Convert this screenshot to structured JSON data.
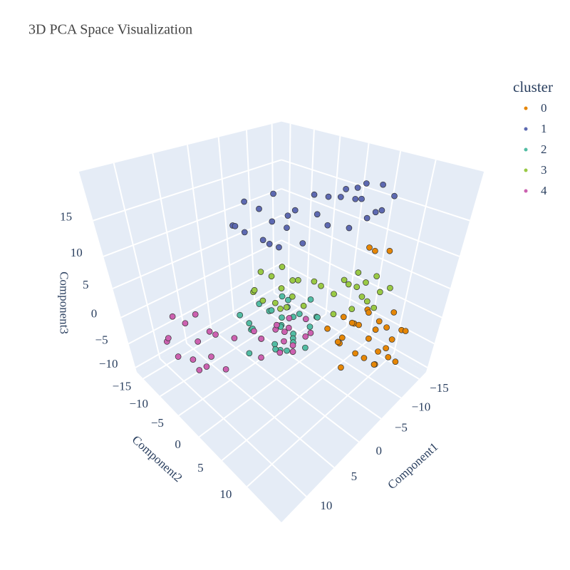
{
  "chart_data": {
    "type": "scatter3d",
    "title": "3D PCA Space Visualization",
    "xlabel": "Component1",
    "ylabel": "Component2",
    "zlabel": "Component3",
    "legend_title": "cluster",
    "xlim": [
      -17,
      14
    ],
    "ylim": [
      -17,
      16
    ],
    "zlim": [
      -11,
      21
    ],
    "xticks": [
      {
        "value": -15,
        "label": "−15"
      },
      {
        "value": -10,
        "label": "−10"
      },
      {
        "value": -5,
        "label": "−5"
      },
      0,
      5,
      10
    ],
    "yticks": [
      {
        "value": -15,
        "label": "−15"
      },
      {
        "value": -10,
        "label": "−10"
      },
      {
        "value": -5,
        "label": "−5"
      },
      0,
      5,
      10
    ],
    "zticks": [
      {
        "value": -10,
        "label": "−10"
      },
      {
        "value": -5,
        "label": "−5"
      },
      0,
      5,
      10,
      15
    ],
    "grid": true,
    "series": [
      {
        "name": "0",
        "color": "#e58606",
        "x": [
          -9.3,
          -6.9,
          -11.7,
          -5.7,
          -12.9,
          -8.1,
          -10.5,
          -4.5,
          -14.1,
          -6.9,
          -11.7,
          -8.1,
          -9.3,
          -9.3,
          -5.7,
          -12.9,
          -5.7,
          -14.1,
          -3.3,
          -15.3,
          -8.1,
          -10.5,
          -6.9,
          -11.7,
          -4.5,
          -14.1,
          -9.3,
          -7.5,
          -6.8,
          -9.0
        ],
        "y": [
          9.4,
          10.6,
          10.6,
          7.0,
          8.2,
          13.0,
          5.8,
          10.6,
          11.8,
          5.8,
          7.0,
          11.8,
          4.6,
          14.2,
          13.0,
          13.0,
          4.6,
          5.8,
          9.4,
          9.4,
          8.2,
          10.6,
          14.2,
          4.6,
          8.2,
          10.6,
          10.6,
          9.4,
          9.0,
          10.5
        ],
        "z": [
          -3.0,
          -4.3,
          -1.7,
          -3.0,
          -4.3,
          -1.7,
          -3.0,
          -1.7,
          -3.0,
          -4.3,
          -0.4,
          -5.6,
          -1.7,
          -4.3,
          -3.0,
          -1.7,
          -1.7,
          -3.0,
          -4.3,
          -1.7,
          -0.4,
          -5.6,
          -1.7,
          -4.3,
          -0.4,
          -5.6,
          0.9,
          12.2,
          12.8,
          12.0
        ]
      },
      {
        "name": "1",
        "color": "#5d69b1",
        "x": [
          -0.7,
          1.9,
          -3.3,
          3.2,
          -4.6,
          0.6,
          -2.0,
          4.5,
          -5.9,
          1.9,
          -3.3,
          0.6,
          -0.7,
          -0.7,
          3.2,
          -14.1,
          -7.5,
          -15.2,
          -5.3,
          -16.3,
          -9.7,
          -11.9,
          -8.6,
          -13.0,
          -6.4,
          -15.2,
          -10.8,
          -9.7,
          -11.9,
          -8.6
        ],
        "y": [
          -1.3,
          0.0,
          0.0,
          -3.9,
          -2.6,
          2.6,
          -5.2,
          0.0,
          1.3,
          -5.2,
          -3.9,
          1.3,
          -6.5,
          3.9,
          2.6,
          6.9,
          -0.8,
          0.3,
          3.6,
          3.6,
          2.5,
          4.7,
          8.0,
          -0.8,
          2.5,
          4.7,
          4.7,
          3.6,
          2.5,
          5.8
        ],
        "z": [
          14.9,
          13.9,
          15.9,
          14.9,
          13.9,
          15.9,
          14.9,
          15.9,
          14.9,
          13.9,
          16.9,
          12.9,
          15.9,
          13.9,
          14.9,
          16.4,
          16.4,
          15.4,
          14.4,
          16.4,
          17.4,
          13.4,
          16.4,
          14.4,
          17.4,
          13.4,
          18.4,
          12.4,
          15.4,
          17.4
        ]
      },
      {
        "name": "2",
        "color": "#52bca3",
        "x": [
          -1.5,
          0.9,
          -3.9,
          2.1,
          -5.1,
          -0.3,
          -2.7,
          3.3,
          -6.3,
          0.9,
          -3.9,
          -0.3,
          -1.5,
          -1.5,
          2.1,
          -5.1,
          2.1,
          -6.3,
          4.5,
          -7.5,
          -0.3,
          -2.7,
          0.9,
          -3.9,
          3.3,
          -6.3,
          -1.5,
          -0.3,
          -2.7,
          0.9
        ],
        "y": [
          -0.5,
          0.7,
          0.7,
          -2.9,
          -1.7,
          3.1,
          -4.1,
          0.7,
          1.9,
          -4.1,
          -2.9,
          1.9,
          -5.3,
          4.3,
          3.1,
          3.1,
          -5.3,
          -4.1,
          -0.5,
          -0.5,
          -1.7,
          0.7,
          4.3,
          -5.3,
          -1.7,
          0.7,
          0.7,
          -0.5,
          -1.7,
          1.9
        ],
        "z": [
          -1.4,
          -2.7,
          -0.1,
          -1.4,
          -2.7,
          -0.1,
          -1.4,
          -0.1,
          -1.4,
          -2.7,
          1.2,
          -4.0,
          -0.1,
          -2.7,
          -1.4,
          -0.1,
          -0.1,
          -1.4,
          -2.7,
          -0.1,
          1.2,
          -4.0,
          -0.1,
          -2.7,
          1.2,
          -4.0,
          2.5,
          -5.3,
          -1.4,
          1.2
        ]
      },
      {
        "name": "3",
        "color": "#99c945",
        "x": [
          -3.1,
          -0.9,
          -5.3,
          0.2,
          -6.4,
          -2.0,
          -4.2,
          1.3,
          -7.5,
          -0.9,
          -5.3,
          -2.0,
          -3.1,
          -3.1,
          0.2,
          -15.7,
          -9.1,
          -16.8,
          -6.9,
          -16.9,
          -11.3,
          -13.5,
          -10.2,
          -14.6,
          -8.0,
          -16.8,
          -12.4,
          -11.3,
          -13.5,
          -10.2
        ],
        "y": [
          -2.2,
          -1.1,
          -1.1,
          -4.4,
          -3.3,
          1.1,
          -5.5,
          -1.1,
          0.0,
          -5.5,
          -4.4,
          0.0,
          -6.6,
          2.2,
          1.1,
          7.8,
          0.0,
          1.1,
          4.5,
          4.5,
          3.4,
          5.6,
          8.9,
          0.1,
          3.4,
          5.6,
          5.6,
          4.5,
          3.4,
          6.7
        ],
        "z": [
          3.4,
          2.6,
          4.2,
          3.4,
          2.6,
          4.2,
          3.4,
          4.2,
          3.4,
          2.6,
          5.0,
          1.8,
          4.2,
          2.6,
          3.4,
          1.8,
          1.8,
          1.0,
          0.2,
          1.8,
          2.6,
          -0.6,
          1.8,
          0.2,
          2.6,
          -0.6,
          3.4,
          -1.4,
          1.0,
          2.6
        ]
      },
      {
        "name": "4",
        "color": "#cc61b0",
        "x": [
          7.8,
          9.8,
          5.8,
          10.8,
          4.8,
          8.8,
          6.8,
          11.8,
          3.8,
          9.8,
          5.8,
          8.8,
          7.8,
          7.8,
          10.8,
          -4.5,
          0.9,
          -5.4,
          2.7,
          -6.3,
          -0.9,
          -2.7,
          0.0,
          -3.6,
          1.8,
          -5.4,
          -1.8,
          -0.9,
          -2.7,
          0.0
        ],
        "y": [
          -7.9,
          -6.3,
          -6.3,
          -11.1,
          -9.5,
          -3.1,
          -12.7,
          -6.3,
          -4.7,
          -12.7,
          -11.1,
          -4.7,
          -14.3,
          -1.5,
          -3.1,
          2.5,
          -3.8,
          -2.9,
          -0.2,
          -0.2,
          -1.1,
          0.7,
          3.4,
          -3.8,
          -1.1,
          0.7,
          0.7,
          -0.2,
          -1.1,
          1.6
        ],
        "z": [
          -3.0,
          -4.0,
          -2.0,
          -3.0,
          -4.0,
          -2.0,
          -3.0,
          -2.0,
          -3.0,
          -4.0,
          -1.0,
          -5.0,
          -2.0,
          -4.0,
          -3.0,
          -3.0,
          -3.0,
          -3.8,
          -4.6,
          -3.0,
          -2.2,
          -5.4,
          -3.0,
          -4.6,
          -2.2,
          -5.4,
          -1.4,
          -6.2,
          -3.8,
          -2.2
        ]
      }
    ]
  }
}
